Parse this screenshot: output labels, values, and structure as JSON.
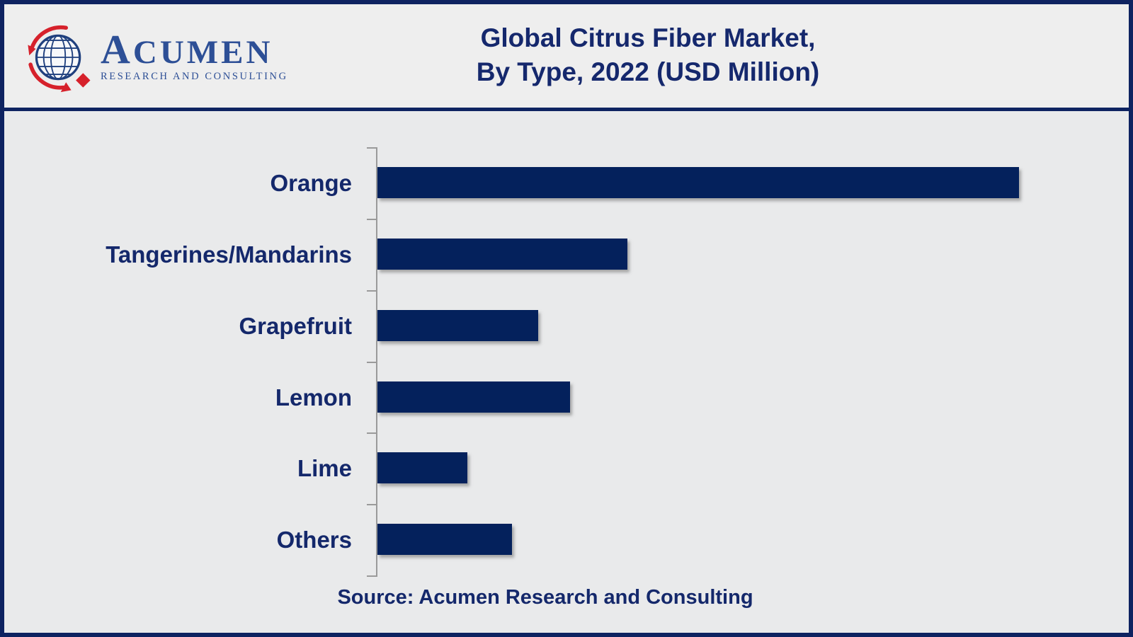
{
  "logo": {
    "name": "ACUMEN",
    "name_initial": "A",
    "name_rest": "CUMEN",
    "tagline": "RESEARCH AND CONSULTING",
    "icon": "globe-with-red-arrows-and-diamond",
    "blue": "#2d4f96",
    "red": "#d6212b"
  },
  "title": {
    "line1": "Global Citrus Fiber Market,",
    "line2": "By Type, 2022 (USD Million)"
  },
  "source": "Source: Acumen Research and Consulting",
  "chart_data": {
    "type": "bar",
    "orientation": "horizontal",
    "title": "Global Citrus Fiber Market, By Type, 2022 (USD Million)",
    "categories": [
      "Orange",
      "Tangerines/Mandarins",
      "Grapefruit",
      "Lemon",
      "Lime",
      "Others"
    ],
    "values": [
      100,
      39,
      25,
      30,
      14,
      21
    ],
    "values_note": "No numeric axis or data labels shown; values are relative bar lengths as % of the longest bar (Orange = 100)",
    "units": "USD Million (axis unlabeled)",
    "xlabel": "",
    "ylabel": "",
    "grid": false,
    "legend": false,
    "value_labels_shown": false,
    "bar_color": "#04215c",
    "axis_color": "#9a9a9a",
    "text_color": "#14286b",
    "background_color": "#e9eaeb",
    "border_color": "#0e2361"
  }
}
